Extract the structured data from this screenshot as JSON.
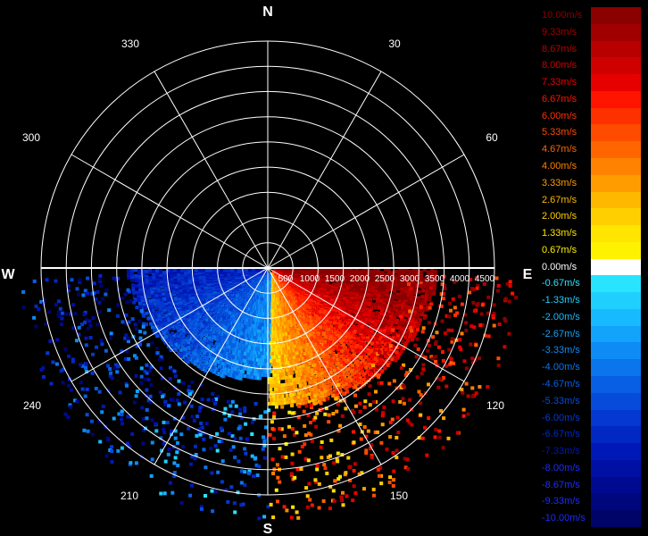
{
  "compass": {
    "north": "N",
    "south": "S",
    "east": "E",
    "west": "W"
  },
  "bearing_labels": [
    "30",
    "60",
    "120",
    "150",
    "210",
    "240",
    "300",
    "330"
  ],
  "range_labels": [
    "1000",
    "1500",
    "2000",
    "2500",
    "3000",
    "3500",
    "4000",
    "4500"
  ],
  "legend": {
    "labels": [
      "10.00m/s",
      "9.33m/s",
      "8.67m/s",
      "8.00m/s",
      "7.33m/s",
      "6.67m/s",
      "6.00m/s",
      "5.33m/s",
      "4.67m/s",
      "4.00m/s",
      "3.33m/s",
      "2.67m/s",
      "2.00m/s",
      "1.33m/s",
      "0.67m/s",
      "0.00m/s",
      "-0.67m/s",
      "-1.33m/s",
      "-2.00m/s",
      "-2.67m/s",
      "-3.33m/s",
      "-4.00m/s",
      "-4.67m/s",
      "-5.33m/s",
      "-6.00m/s",
      "-6.67m/s",
      "-7.33m/s",
      "-8.00m/s",
      "-8.67m/s",
      "-9.33m/s",
      "-10.00m/s"
    ],
    "colors": [
      "#8b0000",
      "#a10000",
      "#b80000",
      "#cf0000",
      "#e60000",
      "#ff1400",
      "#ff3000",
      "#ff4b00",
      "#ff6600",
      "#ff8200",
      "#ff9d00",
      "#ffb800",
      "#ffd000",
      "#ffe500",
      "#fff200",
      "#ffffff",
      "#28e4ff",
      "#1fd0ff",
      "#17baff",
      "#12a3fb",
      "#0d8cf5",
      "#0a75ec",
      "#085fe3",
      "#064bda",
      "#0438d0",
      "#0228c4",
      "#0018b6",
      "#0010a4",
      "#000a90",
      "#00067c",
      "#000468"
    ]
  },
  "colors": {
    "background": "#000000",
    "grid": "#ffffff"
  }
}
